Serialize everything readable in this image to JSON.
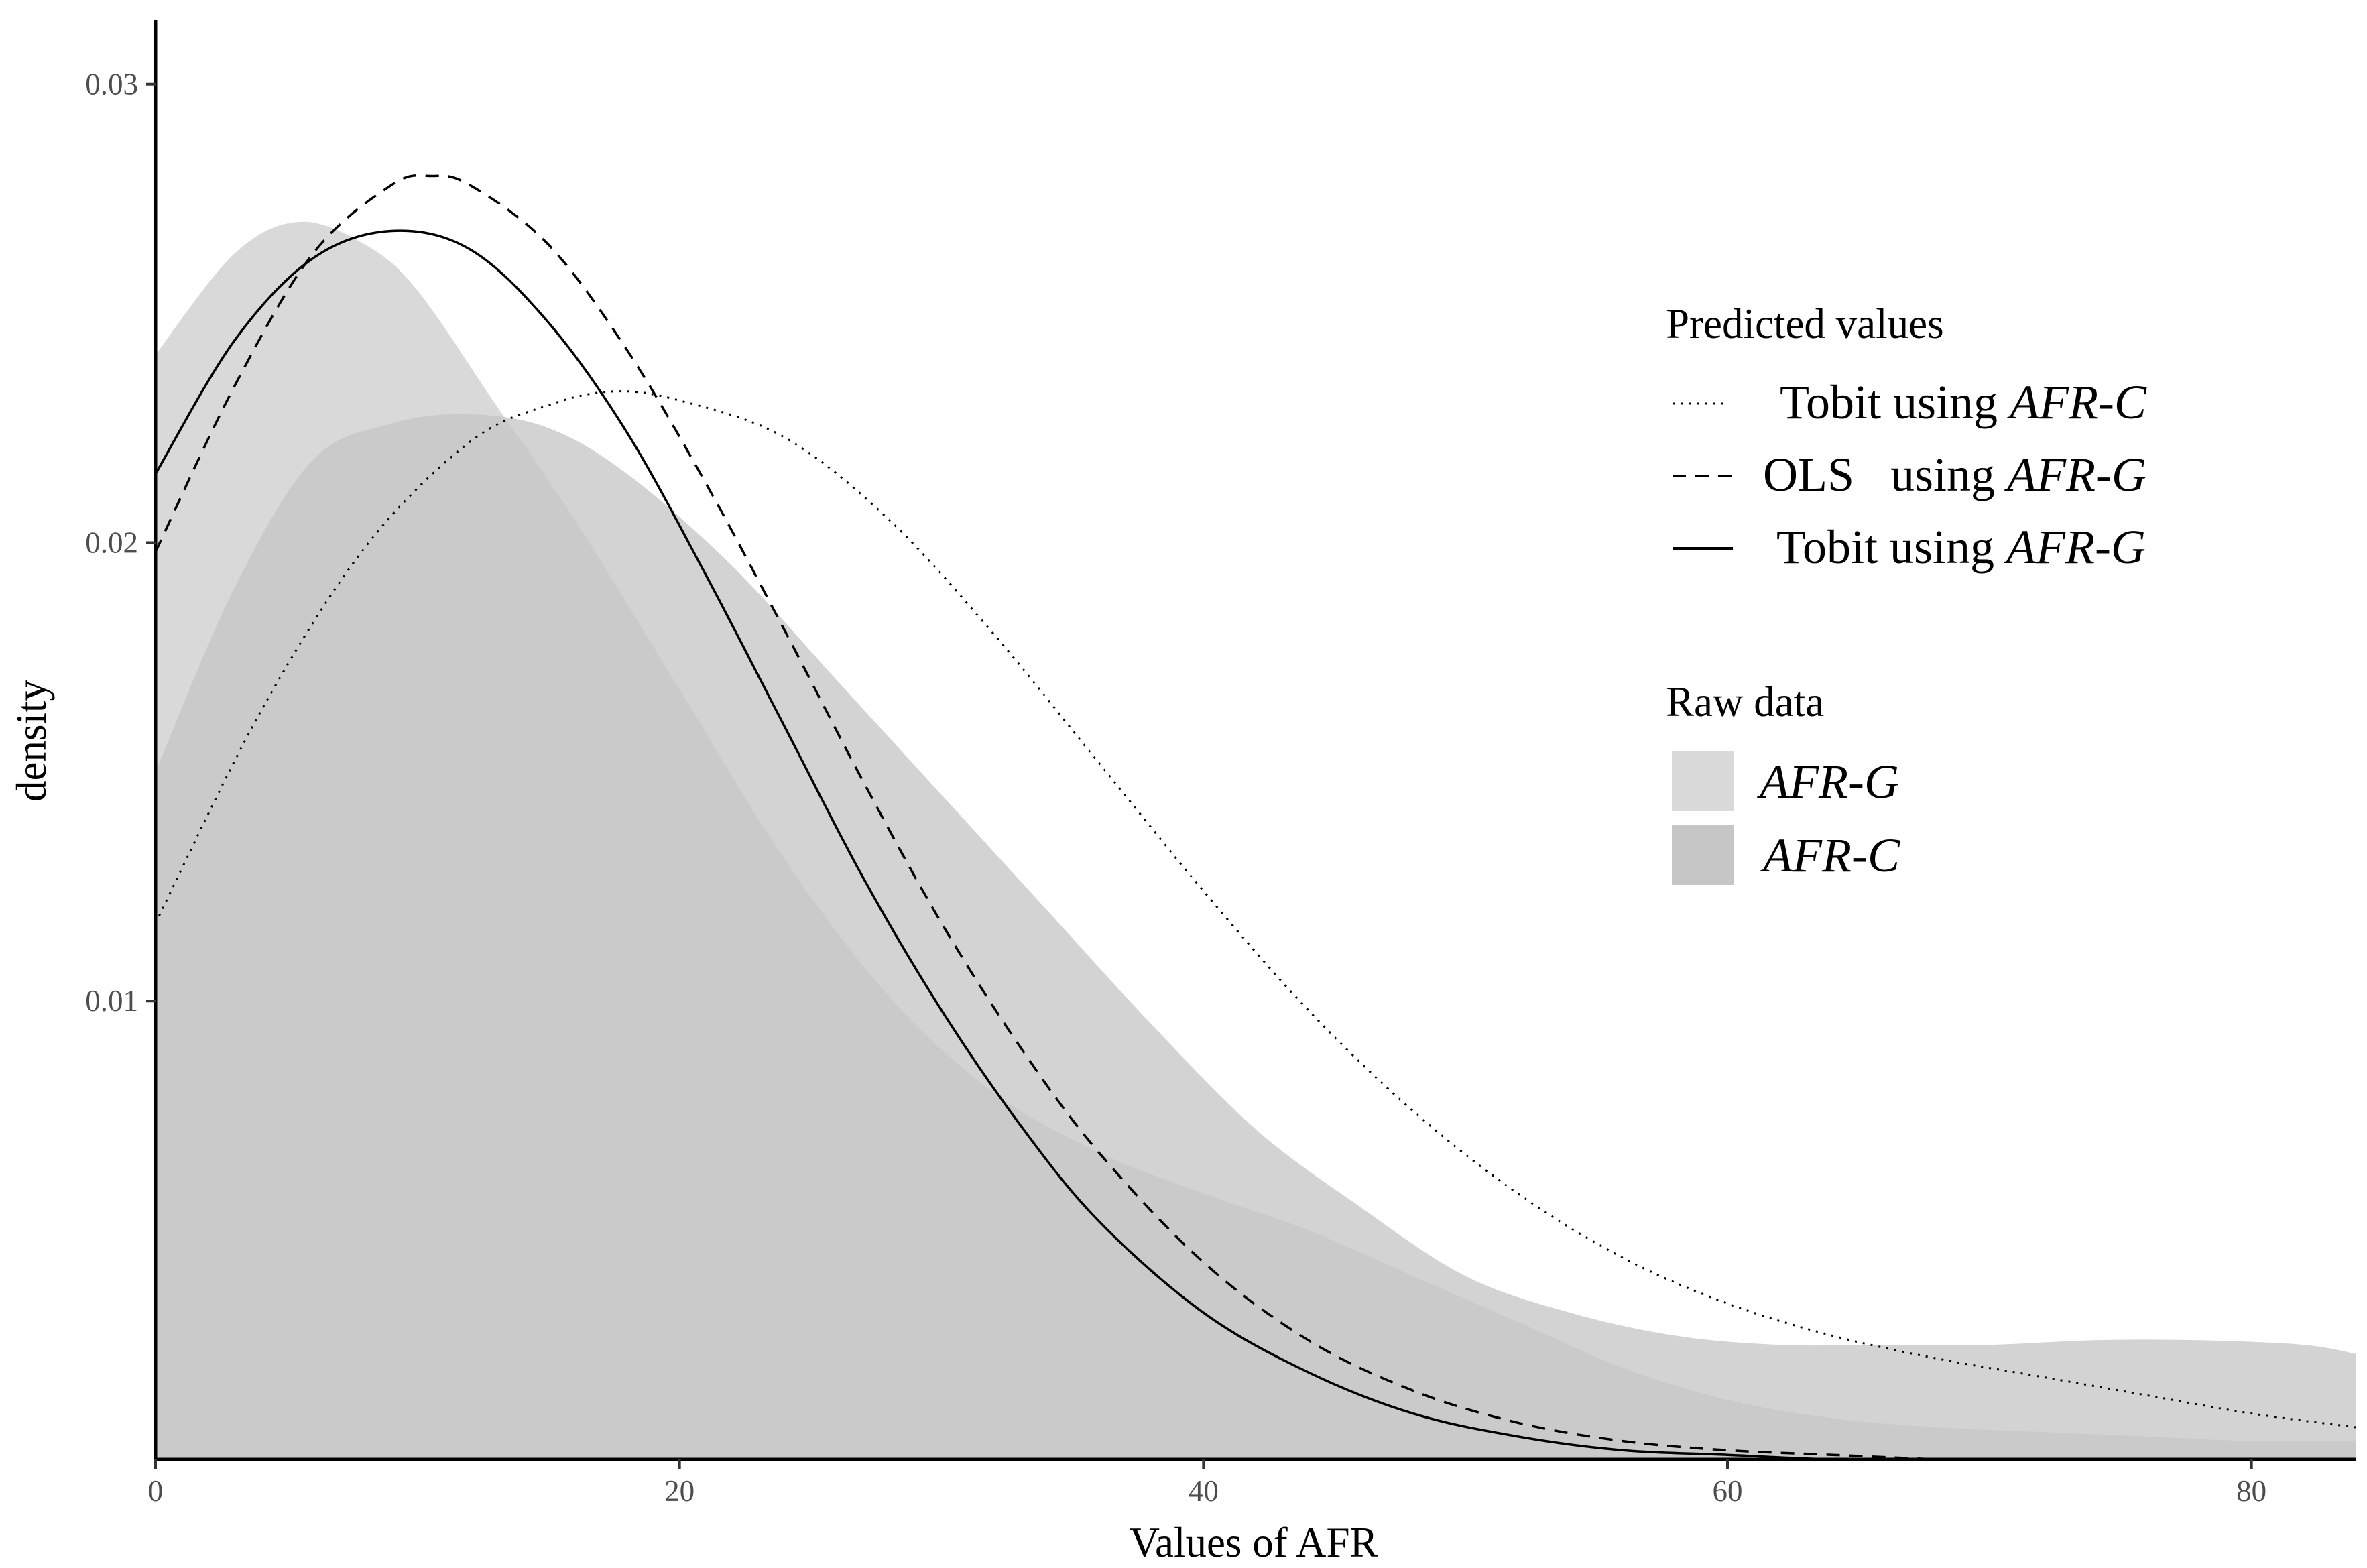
{
  "chart_data": {
    "type": "area",
    "xlabel": "Values of AFR",
    "ylabel": "density",
    "xlim": [
      0,
      84
    ],
    "ylim": [
      0.0,
      0.0314
    ],
    "x_ticks": [
      0,
      20,
      40,
      60,
      80
    ],
    "x_tick_labels": [
      "0",
      "20",
      "40",
      "60",
      "80"
    ],
    "y_ticks": [
      0.01,
      0.02,
      0.03
    ],
    "y_tick_labels": [
      "0.01",
      "0.02",
      "0.03"
    ],
    "grid": false,
    "legend_position": "right",
    "legend": {
      "predicted_title": "Predicted values",
      "predicted_items": [
        {
          "method": "Tobit using",
          "var": "AFR",
          "dash": "-",
          "suffix": "C",
          "line": "dotted"
        },
        {
          "method": "OLS   using",
          "var": "AFR",
          "dash": "-",
          "suffix": "G",
          "line": "dashed"
        },
        {
          "method": "Tobit using",
          "var": "AFR",
          "dash": "-",
          "suffix": "G",
          "line": "solid"
        }
      ],
      "raw_title": "Raw data",
      "raw_items": [
        {
          "var": "AFR",
          "dash": "-",
          "suffix": "G",
          "color": "#dadada"
        },
        {
          "var": "AFR",
          "dash": "-",
          "suffix": "C",
          "color": "#c6c6c6"
        }
      ]
    },
    "areas": [
      {
        "legend_ref": "AFR-G",
        "color": "#d9d9d9",
        "x": [
          0,
          3,
          5.5,
          8,
          10,
          13,
          16,
          20,
          24,
          28,
          32,
          36,
          40,
          44,
          48,
          52,
          56,
          60,
          64,
          68,
          72,
          76,
          80,
          84
        ],
        "y": [
          0.0241,
          0.0263,
          0.027,
          0.0265,
          0.0255,
          0.023,
          0.0205,
          0.0168,
          0.0131,
          0.0101,
          0.008,
          0.0067,
          0.0058,
          0.005,
          0.004,
          0.003,
          0.002,
          0.0013,
          0.0009,
          0.0007,
          0.0006,
          0.0005,
          0.0004,
          0.0004
        ]
      },
      {
        "legend_ref": "AFR-C",
        "color": "#c4c4c4",
        "x": [
          0,
          3,
          6,
          9,
          12,
          15,
          18,
          22,
          26,
          30,
          34,
          38,
          42,
          46,
          50,
          54,
          58,
          62,
          66,
          70,
          74,
          78,
          82,
          84
        ],
        "y": [
          0.015,
          0.019,
          0.0218,
          0.0226,
          0.0228,
          0.0225,
          0.0215,
          0.0195,
          0.017,
          0.0145,
          0.012,
          0.0095,
          0.0072,
          0.0055,
          0.004,
          0.0032,
          0.0027,
          0.0025,
          0.0025,
          0.0025,
          0.0026,
          0.0026,
          0.0025,
          0.0023
        ]
      }
    ],
    "series": [
      {
        "legend_ref": "Tobit using AFR-C",
        "style": "dotted",
        "x": [
          0,
          4,
          8,
          12,
          15,
          17.5,
          20,
          24,
          28,
          32,
          36,
          40,
          44,
          48,
          52,
          56,
          60,
          64,
          68,
          72,
          76,
          80,
          84
        ],
        "y": [
          0.0117,
          0.0163,
          0.0199,
          0.0222,
          0.023,
          0.0233,
          0.0231,
          0.0223,
          0.0205,
          0.018,
          0.0152,
          0.0124,
          0.0098,
          0.0076,
          0.0058,
          0.0044,
          0.0034,
          0.0027,
          0.0022,
          0.0018,
          0.0014,
          0.001,
          0.0007
        ]
      },
      {
        "legend_ref": "OLS using AFR-G",
        "style": "dashed",
        "x": [
          0,
          3,
          6,
          9,
          10.5,
          12,
          15,
          18,
          21,
          24,
          27,
          30,
          33,
          36,
          40,
          44,
          48,
          52,
          56,
          60,
          64,
          68
        ],
        "y": [
          0.0198,
          0.0234,
          0.0263,
          0.0278,
          0.028,
          0.0278,
          0.0265,
          0.0242,
          0.0213,
          0.0181,
          0.0148,
          0.0117,
          0.009,
          0.0067,
          0.0043,
          0.0026,
          0.0015,
          0.0008,
          0.0004,
          0.0002,
          0.0001,
          0.0
        ]
      },
      {
        "legend_ref": "Tobit using AFR-G",
        "style": "solid",
        "x": [
          0,
          3,
          6,
          9,
          12,
          15,
          18,
          21,
          24,
          27,
          30,
          33,
          36,
          40,
          44,
          48,
          52,
          56,
          60,
          64,
          68
        ],
        "y": [
          0.0215,
          0.0244,
          0.0262,
          0.0268,
          0.0264,
          0.0248,
          0.0224,
          0.0193,
          0.016,
          0.0127,
          0.0098,
          0.0073,
          0.0052,
          0.0032,
          0.0019,
          0.001,
          0.0005,
          0.0002,
          0.0001,
          0.0,
          0.0
        ]
      }
    ]
  }
}
